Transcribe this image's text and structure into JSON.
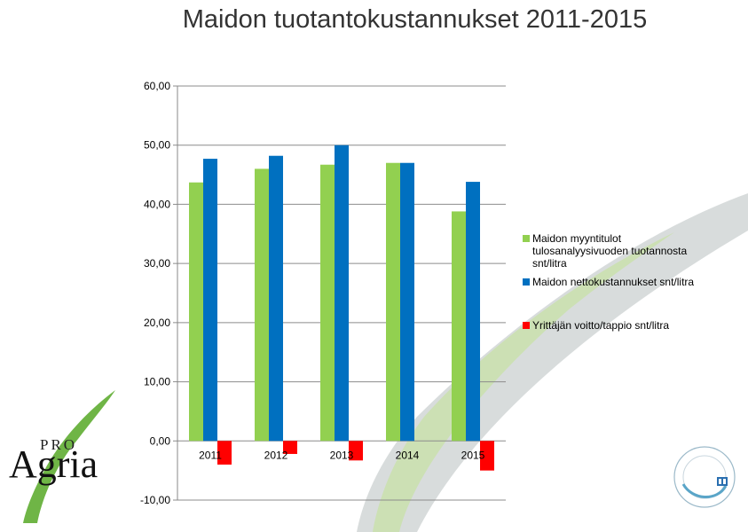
{
  "title": "Maidon tuotantokustannukset 2011-2015",
  "colors": {
    "green": "#92d050",
    "blue": "#0070c0",
    "red": "#ff0000",
    "swoosh_green": "#cce0b4",
    "swoosh_gray": "#d8dcdc",
    "logo_green": "#6fb546"
  },
  "chart_data": {
    "type": "bar",
    "categories": [
      "2011",
      "2012",
      "2013",
      "2014",
      "2015"
    ],
    "series": [
      {
        "name": "Maidon myyntitulot tulosanalyysivuoden tuotannosta snt/litra",
        "values": [
          43.7,
          46.0,
          46.7,
          47.0,
          38.8
        ],
        "color": "#92d050"
      },
      {
        "name": "Maidon nettokustannukset snt/litra",
        "values": [
          47.7,
          48.2,
          50.0,
          47.0,
          43.8
        ],
        "color": "#0070c0"
      },
      {
        "name": "Yrittäjän voitto/tappio snt/litra",
        "values": [
          -4.0,
          -2.2,
          -3.3,
          0.0,
          -5.0
        ],
        "color": "#ff0000"
      }
    ],
    "legend_lines": [
      [
        "Maidon myyntitulot",
        "tulosanalyysivuoden tuotannosta",
        "snt/litra"
      ],
      [
        "Maidon nettokustannukset snt/litra"
      ],
      [
        "Yrittäjän voitto/tappio snt/litra"
      ]
    ],
    "yticks": [
      "60,00",
      "50,00",
      "40,00",
      "30,00",
      "20,00",
      "10,00",
      "0,00",
      "-10,00"
    ],
    "ylim": [
      -10,
      60
    ],
    "grid": true,
    "legend_position": "right"
  },
  "logo": {
    "pro": "PRO",
    "agria": "Agria"
  }
}
